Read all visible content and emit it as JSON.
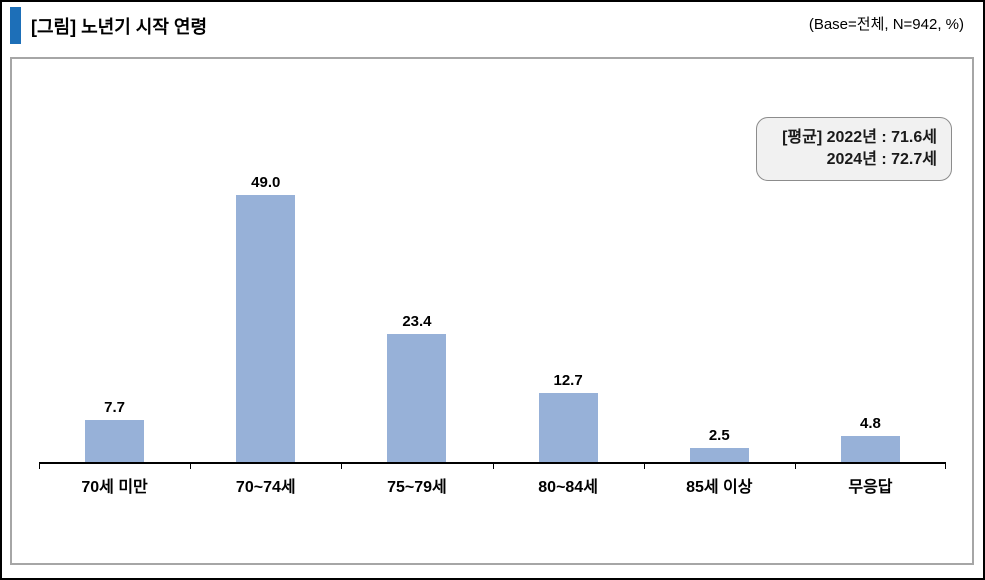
{
  "header": {
    "title": "[그림] 노년기 시작 연령",
    "base_note": "(Base=전체,  N=942,  %)"
  },
  "annotation": {
    "line1": "[평균]  2022년 : 71.6세",
    "line2": "2024년 : 72.7세"
  },
  "colors": {
    "bar": "#97B1D8",
    "title_marker": "#1D6FB8",
    "panel_border": "#A6A6A6",
    "annotation_bg": "#F1F1F1",
    "annotation_border": "#8C8C8C",
    "axis": "#000000"
  },
  "chart_data": {
    "type": "bar",
    "title": "[그림] 노년기 시작 연령",
    "categories": [
      "70세 미만",
      "70~74세",
      "75~79세",
      "80~84세",
      "85세 이상",
      "무응답"
    ],
    "values": [
      7.7,
      49.0,
      23.4,
      12.7,
      2.5,
      4.8
    ],
    "value_labels": [
      "7.7",
      "49.0",
      "23.4",
      "12.7",
      "2.5",
      "4.8"
    ],
    "xlabel": "",
    "ylabel": "",
    "ylim": [
      0,
      55
    ],
    "grid": false,
    "legend": false,
    "annotations": [
      "[평균] 2022년 : 71.6세",
      "2024년 : 72.7세"
    ]
  }
}
